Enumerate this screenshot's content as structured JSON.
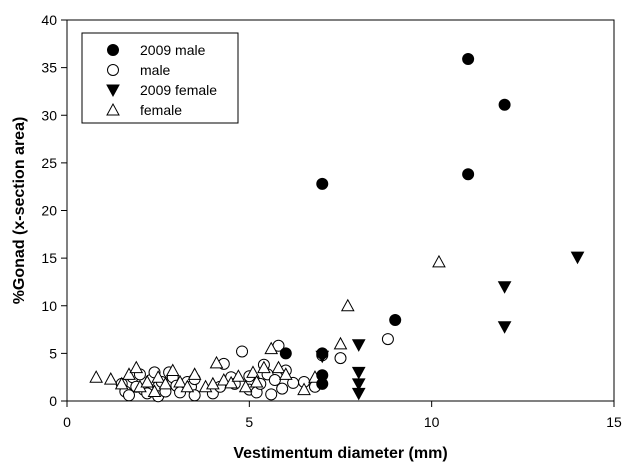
{
  "chart_data": {
    "type": "scatter",
    "xlabel": "Vestimentum diameter (mm)",
    "ylabel": "%Gonad (x-section area)",
    "xlim": [
      0,
      15
    ],
    "ylim": [
      0,
      40
    ],
    "xticks": [
      0,
      5,
      10,
      15
    ],
    "yticks": [
      0,
      5,
      10,
      15,
      20,
      25,
      30,
      35,
      40
    ],
    "grid": false,
    "legend_position": "top-left",
    "series": [
      {
        "name": "2009 male",
        "marker": "filled-circle",
        "color": "#000000",
        "points": [
          [
            6.0,
            5.0
          ],
          [
            7.0,
            22.8
          ],
          [
            7.0,
            2.7
          ],
          [
            7.0,
            1.8
          ],
          [
            7.0,
            5.0
          ],
          [
            9.0,
            8.5
          ],
          [
            11.0,
            35.9
          ],
          [
            11.0,
            23.8
          ],
          [
            12.0,
            31.1
          ]
        ]
      },
      {
        "name": "male",
        "marker": "open-circle",
        "color": "#000000",
        "points": [
          [
            1.5,
            1.8
          ],
          [
            1.6,
            1.0
          ],
          [
            1.7,
            0.6
          ],
          [
            1.8,
            2.5
          ],
          [
            1.9,
            1.5
          ],
          [
            2.0,
            2.8
          ],
          [
            2.1,
            1.2
          ],
          [
            2.2,
            0.8
          ],
          [
            2.3,
            2.2
          ],
          [
            2.4,
            3.0
          ],
          [
            2.5,
            1.5
          ],
          [
            2.5,
            0.5
          ],
          [
            2.6,
            2.0
          ],
          [
            2.7,
            1.0
          ],
          [
            2.8,
            3.0
          ],
          [
            2.9,
            2.5
          ],
          [
            3.0,
            1.6
          ],
          [
            3.1,
            0.9
          ],
          [
            3.3,
            2.0
          ],
          [
            3.4,
            1.5
          ],
          [
            3.5,
            2.3
          ],
          [
            3.5,
            0.6
          ],
          [
            4.0,
            0.8
          ],
          [
            4.2,
            1.5
          ],
          [
            4.3,
            3.9
          ],
          [
            4.5,
            2.5
          ],
          [
            4.6,
            1.8
          ],
          [
            4.8,
            5.2
          ],
          [
            5.0,
            1.2
          ],
          [
            5.0,
            2.6
          ],
          [
            5.2,
            0.9
          ],
          [
            5.3,
            1.8
          ],
          [
            5.4,
            3.8
          ],
          [
            5.5,
            2.8
          ],
          [
            5.6,
            0.7
          ],
          [
            5.7,
            2.2
          ],
          [
            5.8,
            5.8
          ],
          [
            5.9,
            1.3
          ],
          [
            6.0,
            3.2
          ],
          [
            6.2,
            1.9
          ],
          [
            6.5,
            2.0
          ],
          [
            6.8,
            1.5
          ],
          [
            7.0,
            4.8
          ],
          [
            7.5,
            4.5
          ],
          [
            8.8,
            6.5
          ]
        ]
      },
      {
        "name": "2009 female",
        "marker": "filled-triangle-down",
        "color": "#000000",
        "points": [
          [
            7.0,
            4.7
          ],
          [
            8.0,
            5.9
          ],
          [
            8.0,
            3.0
          ],
          [
            8.0,
            1.8
          ],
          [
            8.0,
            0.8
          ],
          [
            12.0,
            12.0
          ],
          [
            12.0,
            7.8
          ],
          [
            14.0,
            15.1
          ]
        ]
      },
      {
        "name": "female",
        "marker": "open-triangle-up",
        "color": "#000000",
        "points": [
          [
            0.8,
            2.5
          ],
          [
            1.2,
            2.3
          ],
          [
            1.5,
            1.8
          ],
          [
            1.7,
            2.8
          ],
          [
            1.9,
            3.5
          ],
          [
            2.0,
            1.5
          ],
          [
            2.2,
            2.0
          ],
          [
            2.4,
            1.0
          ],
          [
            2.5,
            2.5
          ],
          [
            2.7,
            1.8
          ],
          [
            2.9,
            3.2
          ],
          [
            3.1,
            2.0
          ],
          [
            3.3,
            1.5
          ],
          [
            3.5,
            2.8
          ],
          [
            3.8,
            1.5
          ],
          [
            4.0,
            1.8
          ],
          [
            4.1,
            4.0
          ],
          [
            4.3,
            2.2
          ],
          [
            4.5,
            1.9
          ],
          [
            4.7,
            2.6
          ],
          [
            4.9,
            1.5
          ],
          [
            5.1,
            3.0
          ],
          [
            5.2,
            2.0
          ],
          [
            5.4,
            3.5
          ],
          [
            5.6,
            5.5
          ],
          [
            5.8,
            3.5
          ],
          [
            6.0,
            2.8
          ],
          [
            6.5,
            1.2
          ],
          [
            6.8,
            2.5
          ],
          [
            7.5,
            6.0
          ],
          [
            7.7,
            10.0
          ],
          [
            10.2,
            14.6
          ]
        ]
      }
    ]
  }
}
